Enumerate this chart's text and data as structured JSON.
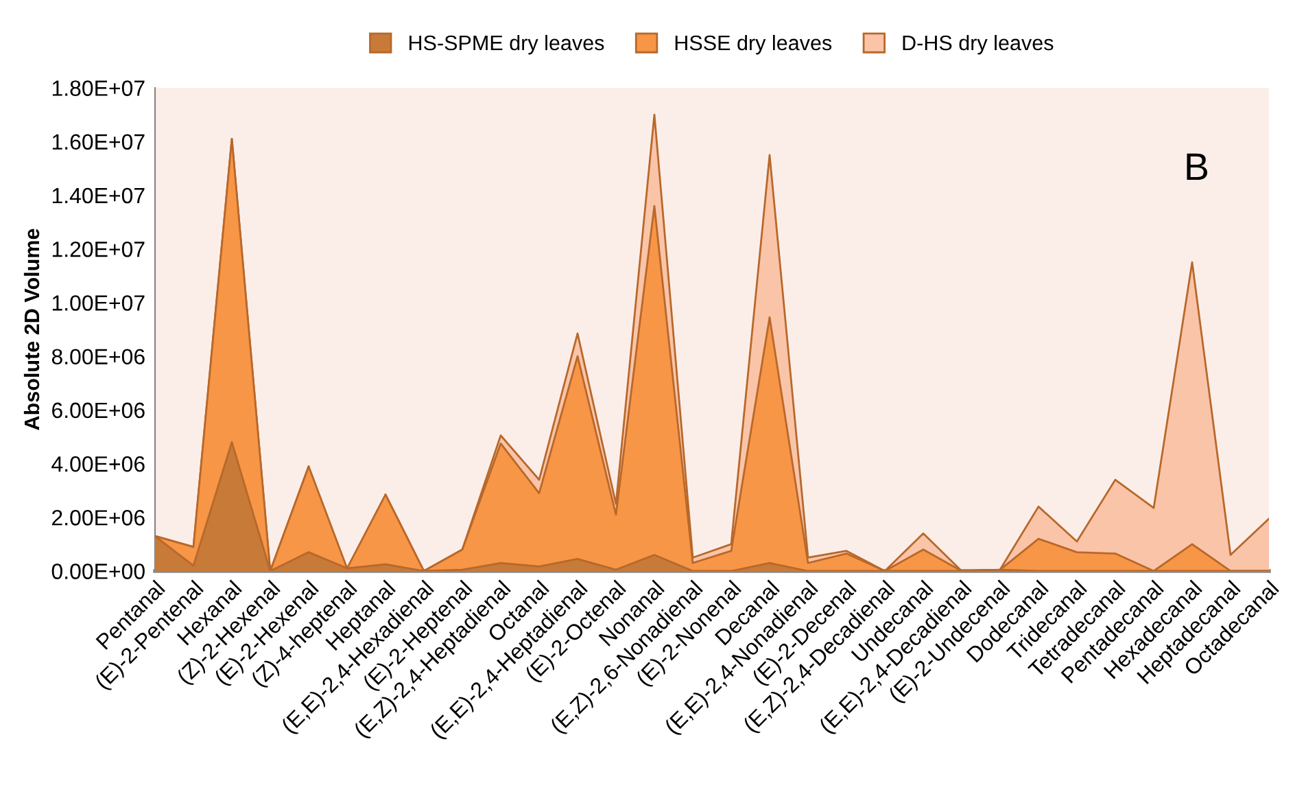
{
  "chart_data": {
    "type": "area",
    "categories": [
      "Pentanal",
      "(E)-2-Pentenal",
      "Hexanal",
      "(Z)-2-Hexenal",
      "(E)-2-Hexenal",
      "(Z)-4-heptenal",
      "Heptanal",
      "(E,E)-2,4-Hexadienal",
      "(E)-2-Heptenal",
      "(E,Z)-2,4-Heptadienal",
      "Octanal",
      "(E,E)-2,4-Heptadienal",
      "(E)-2-Octenal",
      "Nonanal",
      "(E,Z)-2,6-Nonadienal",
      "(E)-2-Nonenal",
      "Decanal",
      "(E,E)-2,4-Nonadienal",
      "(E)-2-Decenal",
      "(E,Z)-2,4-Decadienal",
      "Undecanal",
      "(E,E)-2,4-Decadienal",
      "(E)-2-Undecenal",
      "Dodecanal",
      "Tridecanal",
      "Tetradecanal",
      "Pentadecanal",
      "Hexadecanal",
      "Heptadecanal",
      "Octadecanal"
    ],
    "series": [
      {
        "name": "HS-SPME dry leaves",
        "color": "#c87a38",
        "values": [
          1300000,
          200000,
          4800000,
          0,
          700000,
          100000,
          250000,
          0,
          50000,
          300000,
          170000,
          450000,
          50000,
          600000,
          0,
          0,
          300000,
          0,
          0,
          0,
          0,
          0,
          50000,
          0,
          0,
          0,
          0,
          0,
          0,
          0
        ]
      },
      {
        "name": "HSSE dry leaves",
        "color": "#f79646",
        "values": [
          1300000,
          900000,
          16100000,
          0,
          3900000,
          100000,
          2850000,
          0,
          800000,
          4750000,
          2900000,
          8000000,
          2100000,
          13600000,
          300000,
          750000,
          9450000,
          300000,
          650000,
          0,
          800000,
          0,
          50000,
          1200000,
          700000,
          650000,
          0,
          1000000,
          0,
          0
        ]
      },
      {
        "name": "D-HS dry leaves",
        "color": "#fac4a8",
        "values": [
          1300000,
          900000,
          16100000,
          0,
          3900000,
          null,
          2850000,
          0,
          800000,
          5050000,
          3400000,
          8850000,
          2500000,
          17000000,
          500000,
          1000000,
          15500000,
          500000,
          750000,
          0,
          1400000,
          0,
          50000,
          2400000,
          1100000,
          3400000,
          2350000,
          11500000,
          600000,
          1950000
        ]
      }
    ],
    "ylabel": "Absolute 2D Volume",
    "ylim": [
      0,
      18000000
    ],
    "yticks": [
      {
        "value": 0,
        "label": "0.00E+00"
      },
      {
        "value": 2000000,
        "label": "2.00E+06"
      },
      {
        "value": 4000000,
        "label": "4.00E+06"
      },
      {
        "value": 6000000,
        "label": "6.00E+06"
      },
      {
        "value": 8000000,
        "label": "8.00E+06"
      },
      {
        "value": 10000000,
        "label": "1.00E+07"
      },
      {
        "value": 12000000,
        "label": "1.20E+07"
      },
      {
        "value": 14000000,
        "label": "1.40E+07"
      },
      {
        "value": 16000000,
        "label": "1.60E+07"
      },
      {
        "value": 18000000,
        "label": "1.80E+07"
      }
    ],
    "annotations": [
      "B"
    ],
    "legend": "top",
    "grid": false
  }
}
